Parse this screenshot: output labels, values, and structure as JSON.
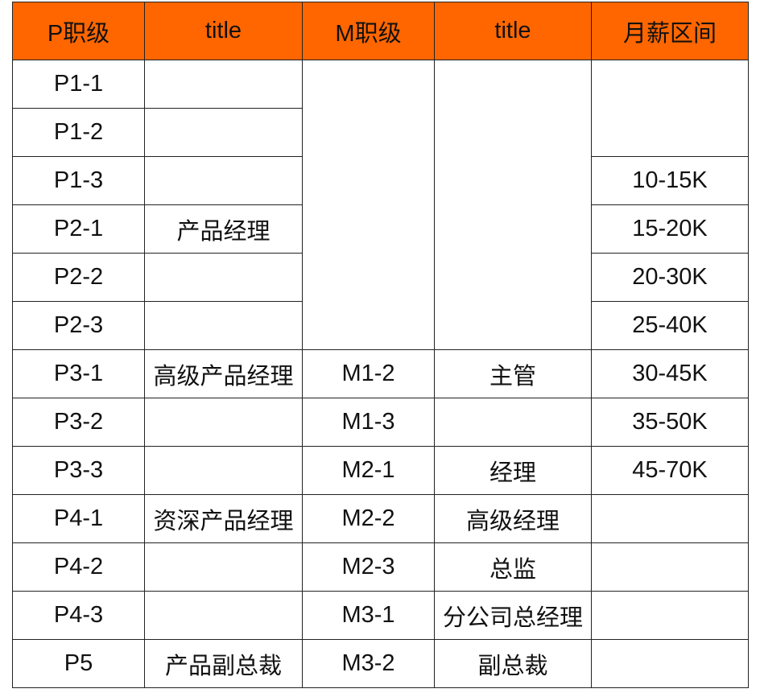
{
  "header_color": "#FF6600",
  "headers": [
    "P职级",
    "title",
    "M职级",
    "title",
    "月薪区间"
  ],
  "rows": [
    {
      "p": "P1-1",
      "ptitle": "",
      "m": "",
      "mtitle": "",
      "salary": ""
    },
    {
      "p": "P1-2",
      "ptitle": ""
    },
    {
      "p": "P1-3",
      "ptitle": "",
      "salary": "10-15K"
    },
    {
      "p": "P2-1",
      "ptitle": "产品经理",
      "salary": "15-20K"
    },
    {
      "p": "P2-2",
      "ptitle": "",
      "salary": "20-30K"
    },
    {
      "p": "P2-3",
      "ptitle": "",
      "salary": "25-40K"
    },
    {
      "p": "P3-1",
      "ptitle": "高级产品经理",
      "m": "M1-2",
      "mtitle": "主管",
      "salary": "30-45K"
    },
    {
      "p": "P3-2",
      "ptitle": "",
      "m": "M1-3",
      "mtitle": "",
      "salary": "35-50K"
    },
    {
      "p": "P3-3",
      "ptitle": "",
      "m": "M2-1",
      "mtitle": "经理",
      "salary": "45-70K"
    },
    {
      "p": "P4-1",
      "ptitle": "资深产品经理",
      "m": "M2-2",
      "mtitle": "高级经理",
      "salary": ""
    },
    {
      "p": "P4-2",
      "ptitle": "",
      "m": "M2-3",
      "mtitle": "总监",
      "salary": ""
    },
    {
      "p": "P4-3",
      "ptitle": "",
      "m": "M3-1",
      "mtitle": "分公司总经理",
      "salary": ""
    },
    {
      "p": "P5",
      "ptitle": "产品副总裁",
      "m": "M3-2",
      "mtitle": "副总裁",
      "salary": ""
    }
  ]
}
